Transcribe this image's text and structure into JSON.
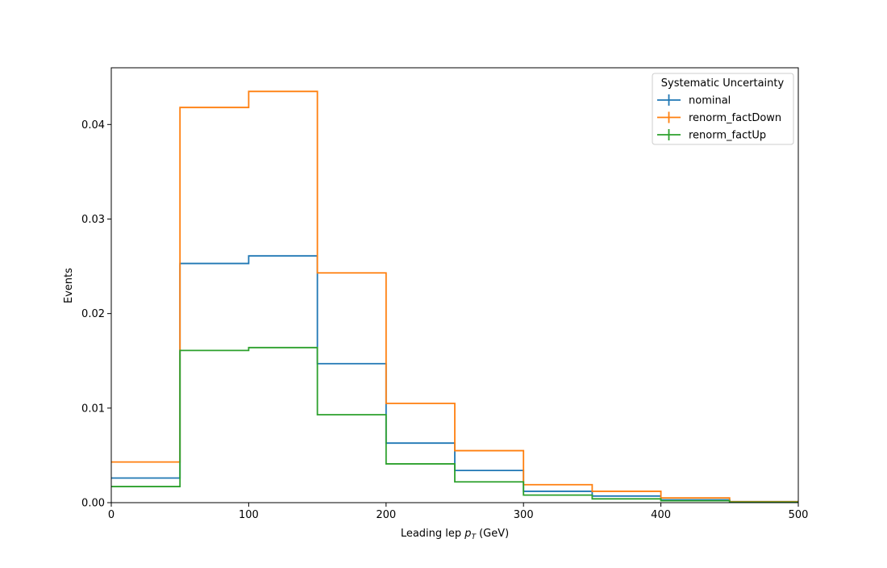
{
  "chart_data": {
    "type": "line",
    "drawstyle": "steps",
    "xlabel": "Leading lep",
    "xlabel_symbol": "p",
    "xlabel_subscript": "T",
    "xlabel_unit": "(GeV)",
    "ylabel": "Events",
    "xlim": [
      0,
      500
    ],
    "ylim": [
      0,
      0.046
    ],
    "xticks": [
      0,
      100,
      200,
      300,
      400,
      500
    ],
    "xtick_labels": [
      "0",
      "100",
      "200",
      "300",
      "400",
      "500"
    ],
    "yticks": [
      0,
      0.01,
      0.02,
      0.03,
      0.04
    ],
    "ytick_labels": [
      "0.00",
      "0.01",
      "0.02",
      "0.03",
      "0.04"
    ],
    "grid": false,
    "legend": {
      "title": "Systematic Uncertainty",
      "placement": "top-right"
    },
    "bin_edges": [
      0,
      50,
      100,
      150,
      200,
      250,
      300,
      350,
      400,
      450,
      500
    ],
    "series": [
      {
        "name": "nominal",
        "color": "#1f77b4",
        "values": [
          0.0026,
          0.0253,
          0.0261,
          0.0147,
          0.0063,
          0.0034,
          0.0012,
          0.0007,
          0.0003,
          0.0001
        ]
      },
      {
        "name": "renorm_factDown",
        "color": "#ff7f0e",
        "values": [
          0.0043,
          0.0418,
          0.0435,
          0.0243,
          0.0105,
          0.0055,
          0.0019,
          0.0012,
          0.0005,
          0.0001
        ]
      },
      {
        "name": "renorm_factUp",
        "color": "#2ca02c",
        "values": [
          0.0017,
          0.0161,
          0.0164,
          0.0093,
          0.0041,
          0.0022,
          0.0008,
          0.0004,
          0.0002,
          5e-05
        ]
      }
    ]
  }
}
